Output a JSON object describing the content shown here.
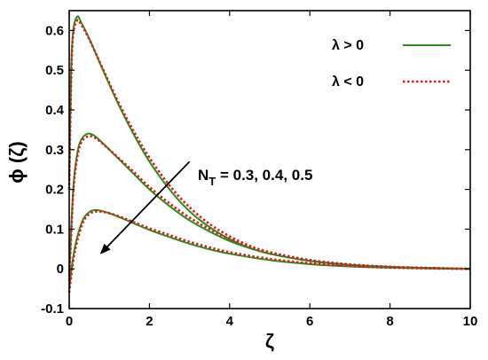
{
  "chart_data": {
    "type": "line",
    "xlabel": "ζ",
    "ylabel": "ϕ (ζ)",
    "xlim": [
      0,
      10
    ],
    "ylim": [
      -0.1,
      0.65
    ],
    "x_ticks": [
      "0",
      "2",
      "4",
      "6",
      "8",
      "10"
    ],
    "y_ticks": [
      "-0.1",
      "0",
      "0.1",
      "0.2",
      "0.3",
      "0.4",
      "0.5",
      "0.6"
    ],
    "x_tick_values": [
      0,
      2,
      4,
      6,
      8,
      10
    ],
    "y_tick_values": [
      -0.1,
      0,
      0.1,
      0.2,
      0.3,
      0.4,
      0.5,
      0.6
    ],
    "grid": false,
    "legend_position": "top-right",
    "annotation": {
      "base": "N",
      "subscript": "T",
      "rest": " = 0.3, 0.4, 0.5",
      "arrow_from": [
        3.0,
        0.27
      ],
      "arrow_to": [
        0.8,
        0.04
      ]
    },
    "series": [
      {
        "name": "λ > 0",
        "color": "#2e8b1e",
        "style": "solid",
        "curves": [
          {
            "x": [
              0,
              0.05,
              0.1,
              0.2,
              0.3,
              0.5,
              0.8,
              1.2,
              1.6,
              2,
              2.5,
              3,
              3.5,
              4,
              4.5,
              5,
              6,
              7,
              8,
              9,
              10
            ],
            "y": [
              0.22,
              0.5,
              0.6,
              0.635,
              0.62,
              0.58,
              0.51,
              0.42,
              0.34,
              0.27,
              0.2,
              0.145,
              0.105,
              0.075,
              0.053,
              0.038,
              0.02,
              0.01,
              0.005,
              0.002,
              0
            ]
          },
          {
            "x": [
              0,
              0.1,
              0.2,
              0.3,
              0.45,
              0.6,
              0.8,
              1.2,
              1.6,
              2,
              2.5,
              3,
              3.5,
              4,
              4.5,
              5,
              6,
              7,
              8,
              9,
              10
            ],
            "y": [
              -0.02,
              0.2,
              0.29,
              0.325,
              0.34,
              0.337,
              0.32,
              0.28,
              0.24,
              0.2,
              0.158,
              0.122,
              0.094,
              0.07,
              0.052,
              0.038,
              0.02,
              0.01,
              0.005,
              0.002,
              0
            ]
          },
          {
            "x": [
              0,
              0.1,
              0.2,
              0.35,
              0.5,
              0.65,
              0.8,
              1.0,
              1.3,
              1.6,
              2,
              2.5,
              3,
              3.5,
              4,
              5,
              6,
              7,
              8,
              9,
              10
            ],
            "y": [
              -0.05,
              0.03,
              0.08,
              0.125,
              0.143,
              0.148,
              0.146,
              0.14,
              0.128,
              0.115,
              0.098,
              0.08,
              0.063,
              0.049,
              0.038,
              0.022,
              0.012,
              0.006,
              0.003,
              0.001,
              0
            ]
          }
        ]
      },
      {
        "name": "λ < 0",
        "color": "#cc2222",
        "style": "dotted",
        "curves": [
          {
            "x": [
              0,
              0.05,
              0.1,
              0.2,
              0.3,
              0.5,
              0.8,
              1.2,
              1.6,
              2,
              2.5,
              3,
              3.5,
              4,
              4.5,
              5,
              6,
              7,
              8,
              9,
              10
            ],
            "y": [
              0.2,
              0.48,
              0.59,
              0.625,
              0.615,
              0.578,
              0.512,
              0.425,
              0.348,
              0.28,
              0.21,
              0.155,
              0.113,
              0.082,
              0.058,
              0.042,
              0.022,
              0.011,
              0.005,
              0.002,
              0
            ]
          },
          {
            "x": [
              0,
              0.1,
              0.2,
              0.3,
              0.45,
              0.6,
              0.8,
              1.2,
              1.6,
              2,
              2.5,
              3,
              3.5,
              4,
              4.5,
              5,
              6,
              7,
              8,
              9,
              10
            ],
            "y": [
              -0.03,
              0.19,
              0.28,
              0.318,
              0.333,
              0.332,
              0.318,
              0.282,
              0.245,
              0.206,
              0.165,
              0.129,
              0.1,
              0.075,
              0.056,
              0.041,
              0.022,
              0.011,
              0.005,
              0.002,
              0
            ]
          },
          {
            "x": [
              0,
              0.1,
              0.2,
              0.35,
              0.5,
              0.65,
              0.8,
              1.0,
              1.3,
              1.6,
              2,
              2.5,
              3,
              3.5,
              4,
              5,
              6,
              7,
              8,
              9,
              10
            ],
            "y": [
              -0.06,
              0.02,
              0.07,
              0.118,
              0.138,
              0.144,
              0.144,
              0.14,
              0.13,
              0.118,
              0.102,
              0.085,
              0.068,
              0.054,
              0.042,
              0.025,
              0.014,
              0.007,
              0.003,
              0.001,
              0
            ]
          }
        ]
      }
    ]
  }
}
